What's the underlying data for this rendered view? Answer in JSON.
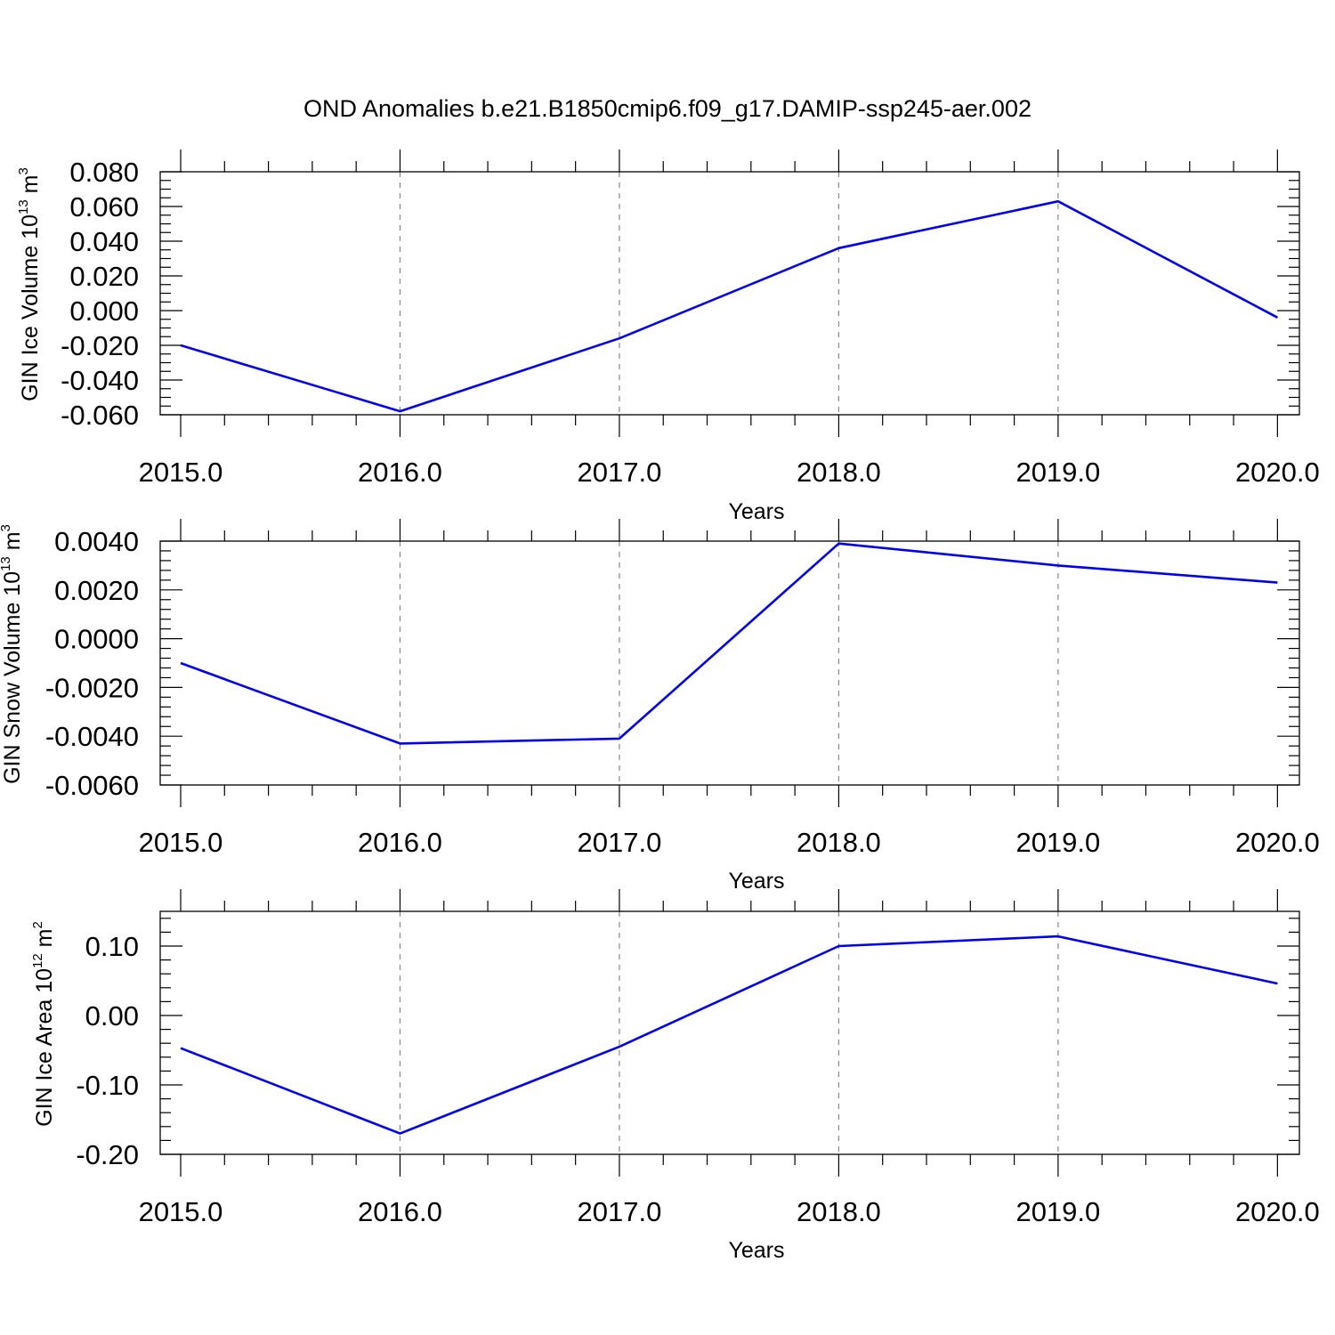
{
  "title": "OND Anomalies b.e21.B1850cmip6.f09_g17.DAMIP-ssp245-aer.002",
  "colors": {
    "line": "#0000ee",
    "grid": "#888888",
    "axis": "#000000"
  },
  "chart_data": [
    {
      "type": "line",
      "ylabel": "GIN Ice Volume 10",
      "ylabel_exp": "13",
      "ylabel_unit": "m",
      "ylabel_unit_exp": "3",
      "xlabel": "Years",
      "xlim": [
        2015,
        2020.1
      ],
      "ylim": [
        -0.06,
        0.08
      ],
      "xticks": [
        2015,
        2016,
        2017,
        2018,
        2019,
        2020
      ],
      "xtick_labels": [
        "2015.0",
        "2016.0",
        "2017.0",
        "2018.0",
        "2019.0",
        "2020.0"
      ],
      "yticks": [
        -0.06,
        -0.04,
        -0.02,
        0.0,
        0.02,
        0.04,
        0.06,
        0.08
      ],
      "ytick_labels": [
        "-0.060",
        "-0.040",
        "-0.020",
        "0.000",
        "0.020",
        "0.040",
        "0.060",
        "0.080"
      ],
      "yminor_step": 0.005,
      "grid": "vertical dashed",
      "x": [
        2015,
        2016,
        2017,
        2018,
        2019,
        2020
      ],
      "y": [
        -0.02,
        -0.058,
        -0.016,
        0.036,
        0.063,
        -0.004
      ]
    },
    {
      "type": "line",
      "ylabel": "GIN Snow Volume 10",
      "ylabel_exp": "13",
      "ylabel_unit": "m",
      "ylabel_unit_exp": "3",
      "xlabel": "Years",
      "xlim": [
        2015,
        2020.1
      ],
      "ylim": [
        -0.006,
        0.004
      ],
      "xticks": [
        2015,
        2016,
        2017,
        2018,
        2019,
        2020
      ],
      "xtick_labels": [
        "2015.0",
        "2016.0",
        "2017.0",
        "2018.0",
        "2019.0",
        "2020.0"
      ],
      "yticks": [
        -0.006,
        -0.004,
        -0.002,
        0.0,
        0.002,
        0.004
      ],
      "ytick_labels": [
        "-0.0060",
        "-0.0040",
        "-0.0020",
        "0.0000",
        "0.0020",
        "0.0040"
      ],
      "yminor_step": 0.0004,
      "grid": "vertical dashed",
      "x": [
        2015,
        2016,
        2017,
        2018,
        2019,
        2020
      ],
      "y": [
        -0.001,
        -0.0043,
        -0.0041,
        0.0039,
        0.003,
        0.0023
      ]
    },
    {
      "type": "line",
      "ylabel": "GIN Ice Area 10",
      "ylabel_exp": "12",
      "ylabel_unit": "m",
      "ylabel_unit_exp": "2",
      "xlabel": "Years",
      "xlim": [
        2015,
        2020.1
      ],
      "ylim": [
        -0.2,
        0.15
      ],
      "xticks": [
        2015,
        2016,
        2017,
        2018,
        2019,
        2020
      ],
      "xtick_labels": [
        "2015.0",
        "2016.0",
        "2017.0",
        "2018.0",
        "2019.0",
        "2020.0"
      ],
      "yticks": [
        -0.2,
        -0.1,
        0.0,
        0.1
      ],
      "ytick_labels": [
        "-0.20",
        "-0.10",
        "0.00",
        "0.10"
      ],
      "yminor_step": 0.02,
      "grid": "vertical dashed",
      "x": [
        2015,
        2016,
        2017,
        2018,
        2019,
        2020
      ],
      "y": [
        -0.047,
        -0.17,
        -0.045,
        0.1,
        0.114,
        0.046
      ]
    }
  ]
}
